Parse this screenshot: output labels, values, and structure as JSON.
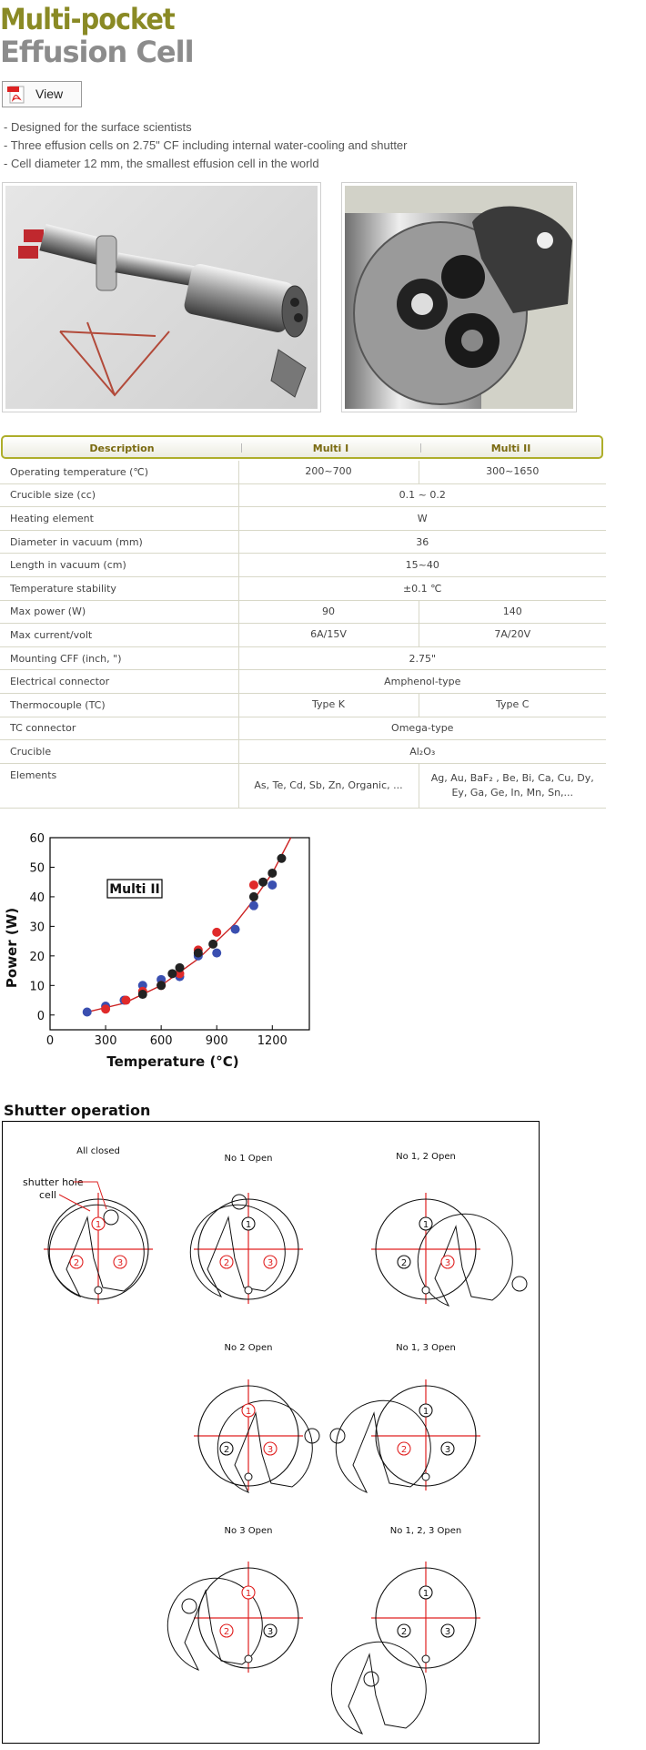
{
  "header": {
    "title_line1": "Multi-pocket",
    "title_line2": "Effusion Cell",
    "view_button_label": "View"
  },
  "features": [
    "- Designed for the surface scientists",
    "- Three effusion cells on 2.75\" CF including internal water-cooling and shutter",
    "- Cell diameter 12 mm, the smallest effusion cell in the world"
  ],
  "spec_table": {
    "headers": [
      "Description",
      "Multi I",
      "Multi II"
    ],
    "rows": [
      {
        "desc": "Operating temperature (℃)",
        "m1": "200~700",
        "m2": "300~1650"
      },
      {
        "desc": "Crucible size (cc)",
        "both": "0.1 ~ 0.2"
      },
      {
        "desc": "Heating element",
        "both": "W"
      },
      {
        "desc": "Diameter in vacuum (mm)",
        "both": "36"
      },
      {
        "desc": "Length in vacuum (cm)",
        "both": "15~40"
      },
      {
        "desc": "Temperature stability",
        "both": "±0.1 ℃"
      },
      {
        "desc": "Max power (W)",
        "m1": "90",
        "m2": "140"
      },
      {
        "desc": "Max current/volt",
        "m1": "6A/15V",
        "m2": "7A/20V"
      },
      {
        "desc": "Mounting CFF (inch, \")",
        "both": "2.75\""
      },
      {
        "desc": "Electrical connector",
        "both": "Amphenol-type"
      },
      {
        "desc": "Thermocouple (TC)",
        "m1": "Type K",
        "m2": "Type C"
      },
      {
        "desc": "TC connector",
        "both": "Omega-type"
      },
      {
        "desc": "Crucible",
        "both": "Al₂O₃"
      },
      {
        "desc": "Elements",
        "m1": "As, Te, Cd, Sb, Zn, Organic, ...",
        "m2": "Ag, Au, BaF₂ , Be, Bi, Ca, Cu, Dy, Ey, Ga, Ge, In, Mn, Sn,..."
      }
    ]
  },
  "chart_data": {
    "type": "scatter",
    "xlabel": "Temperature (°C)",
    "ylabel": "Power (W)",
    "annotation": "Multi II",
    "xlim": [
      0,
      1400
    ],
    "ylim": [
      -5,
      60
    ],
    "xticks": [
      0,
      300,
      600,
      900,
      1200
    ],
    "yticks": [
      0,
      10,
      20,
      30,
      40,
      50,
      60
    ],
    "colors": {
      "series_black": "#222222",
      "series_red": "#e02a2a",
      "series_blue": "#3a4fb0",
      "fit_curve": "#cc2222"
    },
    "series": [
      {
        "values": [
          [
            500,
            7
          ],
          [
            600,
            10
          ],
          [
            660,
            14
          ],
          [
            700,
            16
          ],
          [
            800,
            21
          ],
          [
            880,
            24
          ],
          [
            1100,
            40
          ],
          [
            1150,
            45
          ],
          [
            1200,
            48
          ],
          [
            1250,
            53
          ]
        ]
      },
      {
        "values": [
          [
            300,
            2
          ],
          [
            410,
            5
          ],
          [
            500,
            8
          ],
          [
            600,
            10
          ],
          [
            700,
            14
          ],
          [
            800,
            22
          ],
          [
            900,
            28
          ],
          [
            1100,
            44
          ]
        ]
      },
      {
        "values": [
          [
            200,
            1
          ],
          [
            300,
            3
          ],
          [
            400,
            5
          ],
          [
            500,
            10
          ],
          [
            600,
            12
          ],
          [
            700,
            13
          ],
          [
            800,
            20
          ],
          [
            900,
            21
          ],
          [
            1000,
            29
          ],
          [
            1100,
            37
          ],
          [
            1200,
            44
          ]
        ]
      }
    ],
    "fit_curve": [
      [
        200,
        1
      ],
      [
        400,
        4
      ],
      [
        600,
        10
      ],
      [
        800,
        19
      ],
      [
        1000,
        31
      ],
      [
        1100,
        39
      ],
      [
        1200,
        48
      ],
      [
        1300,
        60
      ]
    ]
  },
  "shutter": {
    "title": "Shutter operation",
    "labels": {
      "shutter_hole": "shutter hole",
      "cell": "cell"
    },
    "panels": [
      {
        "label": "All closed"
      },
      {
        "label": "No 1 Open"
      },
      {
        "label": "No 1, 2 Open"
      },
      {
        "label": "No 2 Open"
      },
      {
        "label": "No 1, 3 Open"
      },
      {
        "label": "No 3 Open"
      },
      {
        "label": "No 1, 2, 3 Open"
      }
    ],
    "cell_numbers": [
      "1",
      "2",
      "3"
    ]
  }
}
